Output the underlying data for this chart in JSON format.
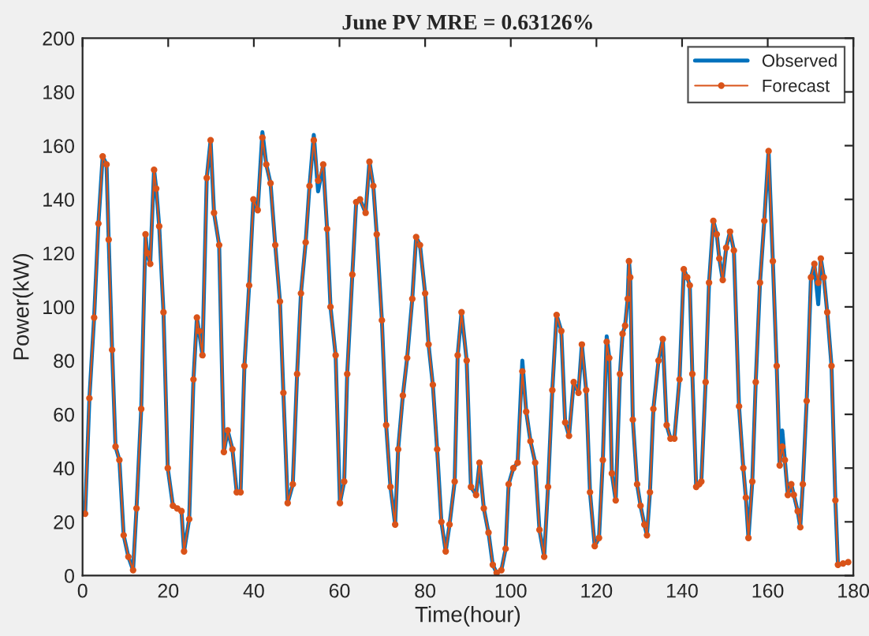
{
  "chart_data": {
    "type": "line",
    "title": "June PV MRE = 0.63126%",
    "xlabel": "Time(hour)",
    "ylabel": "Power(kW)",
    "xlim": [
      0,
      180
    ],
    "xticks": [
      0,
      20,
      40,
      60,
      80,
      100,
      120,
      140,
      160,
      180
    ],
    "ylim": [
      0,
      200
    ],
    "yticks": [
      0,
      20,
      40,
      60,
      80,
      100,
      120,
      140,
      160,
      180,
      200
    ],
    "grid": false,
    "legend": "top right",
    "line_style": "solid",
    "x": [
      0.6,
      1.6,
      2.7,
      3.7,
      4.7,
      5.6,
      6.1,
      6.9,
      7.7,
      8.6,
      9.6,
      10.7,
      11.8,
      12.6,
      13.7,
      14.7,
      15.1,
      15.8,
      16.7,
      17.2,
      17.9,
      18.9,
      19.9,
      21.1,
      22.1,
      23.1,
      23.7,
      24.9,
      25.9,
      26.7,
      27.2,
      28.0,
      29.0,
      29.9,
      30.7,
      31.9,
      33.0,
      33.9,
      35.0,
      36.0,
      36.9,
      37.8,
      38.9,
      39.9,
      40.9,
      42.0,
      42.9,
      43.9,
      45.0,
      46.1,
      46.9,
      47.9,
      49.1,
      50.1,
      51.0,
      52.1,
      53.0,
      54.0,
      55.0,
      56.2,
      57.1,
      57.9,
      59.1,
      60.1,
      61.1,
      61.8,
      63.0,
      63.9,
      64.8,
      66.1,
      67.0,
      67.9,
      68.7,
      69.9,
      70.9,
      71.9,
      73.0,
      73.7,
      74.8,
      75.8,
      77.0,
      77.9,
      78.8,
      80.0,
      80.8,
      81.8,
      82.8,
      83.8,
      84.8,
      85.7,
      86.9,
      87.6,
      88.5,
      89.7,
      90.7,
      91.9,
      92.7,
      93.7,
      94.8,
      95.8,
      96.7,
      97.8,
      98.8,
      99.5,
      100.6,
      101.6,
      102.7,
      103.6,
      104.6,
      105.7,
      106.7,
      107.8,
      108.7,
      109.7,
      110.7,
      111.8,
      112.7,
      113.6,
      114.7,
      115.8,
      116.6,
      117.6,
      118.5,
      119.6,
      120.6,
      121.5,
      122.4,
      123.0,
      123.6,
      124.5,
      125.5,
      126.1,
      126.7,
      127.3,
      127.6,
      127.9,
      128.5,
      129.5,
      130.3,
      131.2,
      131.8,
      132.5,
      133.3,
      134.5,
      135.5,
      136.4,
      137.3,
      138.2,
      139.4,
      140.4,
      141.2,
      141.8,
      142.4,
      143.3,
      144.0,
      144.5,
      145.5,
      146.3,
      147.3,
      148.1,
      148.7,
      149.5,
      150.3,
      151.2,
      152.1,
      153.3,
      154.3,
      154.9,
      155.5,
      156.4,
      157.2,
      158.2,
      159.2,
      160.2,
      161.2,
      162.1,
      162.8,
      163.4,
      164.0,
      164.7,
      165.5,
      166.1,
      167.0,
      167.6,
      168.2,
      169.1,
      170.1,
      170.9,
      171.8,
      172.4,
      173.1,
      173.9,
      174.9,
      175.8,
      176.4,
      177.6,
      178.8
    ],
    "series": [
      {
        "name": "Observed",
        "color": "#0072bd",
        "marker": "none",
        "values": [
          23,
          66,
          96,
          131,
          156,
          153,
          125,
          84,
          48,
          43,
          15,
          7,
          2,
          25,
          62,
          127,
          120,
          116,
          151,
          144,
          130,
          98,
          40,
          26,
          25,
          24,
          9,
          21,
          73,
          96,
          91,
          82,
          148,
          162,
          135,
          123,
          46,
          54,
          47,
          31,
          31,
          78,
          108,
          140,
          136,
          165,
          153,
          146,
          123,
          102,
          68,
          27,
          34,
          75,
          105,
          124,
          145,
          164,
          143,
          153,
          129,
          100,
          82,
          27,
          35,
          75,
          112,
          139,
          140,
          135,
          154,
          145,
          127,
          95,
          56,
          33,
          19,
          47,
          67,
          81,
          103,
          126,
          123,
          105,
          86,
          71,
          47,
          20,
          9,
          19,
          35,
          82,
          98,
          80,
          33,
          30,
          42,
          25,
          16,
          4,
          1,
          2,
          10,
          34,
          40,
          42,
          80,
          61,
          50,
          42,
          17,
          7,
          33,
          69,
          97,
          91,
          57,
          52,
          72,
          68,
          86,
          69,
          31,
          11,
          14,
          43,
          89,
          81,
          38,
          28,
          75,
          90,
          93,
          103,
          117,
          111,
          58,
          34,
          26,
          19,
          15,
          31,
          62,
          80,
          88,
          56,
          51,
          51,
          73,
          114,
          111,
          108,
          75,
          33,
          34,
          35,
          72,
          109,
          132,
          127,
          118,
          110,
          122,
          128,
          121,
          63,
          40,
          29,
          14,
          35,
          72,
          109,
          132,
          158,
          117,
          78,
          41,
          54,
          43,
          30,
          34,
          30,
          24,
          18,
          34,
          65,
          111,
          116,
          101,
          118,
          111,
          98,
          78,
          28,
          4,
          4.5,
          5
        ]
      },
      {
        "name": "Forecast",
        "color": "#d95319",
        "marker": "circle",
        "values": [
          23,
          66,
          96,
          131,
          156,
          153,
          125,
          84,
          48,
          43,
          15,
          7,
          2,
          25,
          62,
          127,
          120,
          116,
          151,
          144,
          130,
          98,
          40,
          26,
          25,
          24,
          9,
          21,
          73,
          96,
          91,
          82,
          148,
          162,
          135,
          123,
          46,
          54,
          47,
          31,
          31,
          78,
          108,
          140,
          136,
          163,
          153,
          146,
          123,
          102,
          68,
          27,
          34,
          75,
          105,
          124,
          145,
          162,
          147,
          153,
          129,
          100,
          82,
          27,
          35,
          75,
          112,
          139,
          140,
          135,
          154,
          145,
          127,
          95,
          56,
          33,
          19,
          47,
          67,
          81,
          103,
          126,
          123,
          105,
          86,
          71,
          47,
          20,
          9,
          19,
          35,
          82,
          98,
          80,
          33,
          30,
          42,
          25,
          16,
          4,
          1,
          2,
          10,
          34,
          40,
          42,
          76,
          61,
          50,
          42,
          17,
          7,
          33,
          69,
          97,
          91,
          57,
          52,
          72,
          68,
          86,
          69,
          31,
          11,
          14,
          43,
          87,
          81,
          38,
          28,
          75,
          90,
          93,
          103,
          117,
          111,
          58,
          34,
          26,
          19,
          15,
          31,
          62,
          80,
          88,
          56,
          51,
          51,
          73,
          114,
          111,
          108,
          75,
          33,
          34,
          35,
          72,
          109,
          132,
          127,
          118,
          110,
          122,
          128,
          121,
          63,
          40,
          29,
          14,
          35,
          72,
          109,
          132,
          158,
          117,
          78,
          41,
          48,
          43,
          30,
          34,
          30,
          24,
          18,
          34,
          65,
          111,
          116,
          109,
          118,
          111,
          98,
          78,
          28,
          4,
          4.5,
          5
        ]
      }
    ]
  }
}
